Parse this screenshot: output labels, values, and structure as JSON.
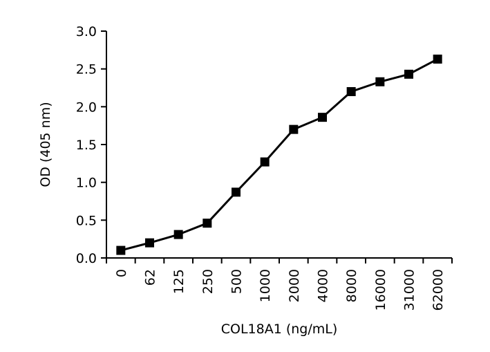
{
  "chart_data": {
    "type": "line",
    "title": "",
    "xlabel": "COL18A1 (ng/mL)",
    "ylabel": "OD (405 nm)",
    "categories": [
      "0",
      "62",
      "125",
      "250",
      "500",
      "1000",
      "2000",
      "4000",
      "8000",
      "16000",
      "31000",
      "62000"
    ],
    "series": [
      {
        "values": [
          0.1,
          0.2,
          0.31,
          0.46,
          0.87,
          1.27,
          1.7,
          1.86,
          2.2,
          2.33,
          2.43,
          2.63
        ],
        "color": "#000000",
        "marker": "square"
      }
    ],
    "ylim": [
      0,
      3.0
    ],
    "yticks": [
      "0.0",
      "0.5",
      "1.0",
      "1.5",
      "2.0",
      "2.5",
      "3.0"
    ],
    "grid": false,
    "legend": "none"
  }
}
